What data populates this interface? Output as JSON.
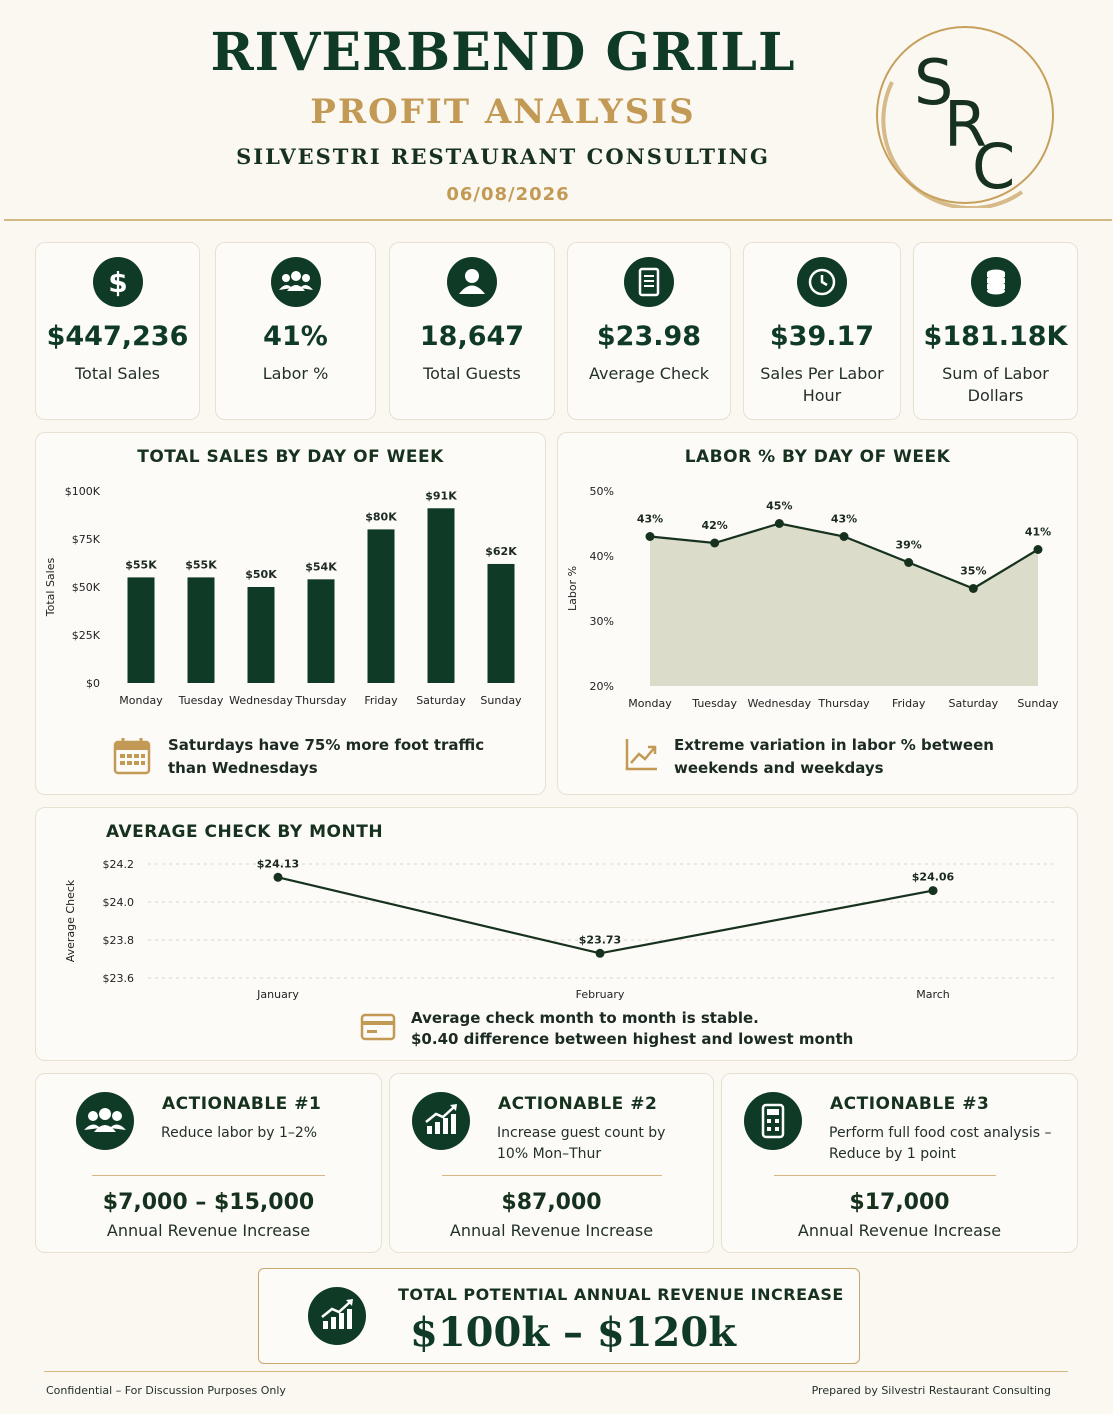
{
  "header": {
    "title": "RIVERBEND GRILL",
    "subtitle": "PROFIT ANALYSIS",
    "company": "SILVESTRI RESTAURANT CONSULTING",
    "date": "06/08/2026",
    "logo_text": "SRC"
  },
  "kpis": [
    {
      "icon": "dollar-icon",
      "value": "$447,236",
      "label": "Total Sales"
    },
    {
      "icon": "people-icon",
      "value": "41%",
      "label": "Labor %"
    },
    {
      "icon": "person-icon",
      "value": "18,647",
      "label": "Total Guests"
    },
    {
      "icon": "receipt-icon",
      "value": "$23.98",
      "label": "Average Check"
    },
    {
      "icon": "clock-icon",
      "value": "$39.17",
      "label": "Sales Per Labor Hour"
    },
    {
      "icon": "coins-icon",
      "value": "$181.18K",
      "label": "Sum of Labor Dollars"
    }
  ],
  "chart_data": [
    {
      "type": "bar",
      "title": "TOTAL SALES BY DAY OF WEEK",
      "ylabel": "Total Sales",
      "categories": [
        "Monday",
        "Tuesday",
        "Wednesday",
        "Thursday",
        "Friday",
        "Saturday",
        "Sunday"
      ],
      "values": [
        55000,
        55000,
        50000,
        54000,
        80000,
        91000,
        62000
      ],
      "data_labels": [
        "$55K",
        "$55K",
        "$50K",
        "$54K",
        "$80K",
        "$91K",
        "$62K"
      ],
      "ylim": [
        0,
        100000
      ],
      "yticks": [
        0,
        25000,
        50000,
        75000,
        100000
      ],
      "ytick_labels": [
        "$0",
        "$25K",
        "$50K",
        "$75K",
        "$100K"
      ],
      "color": "#0f3a25",
      "insight": "Saturdays have 75% more foot traffic than Wednesdays",
      "insight_icon": "calendar-icon"
    },
    {
      "type": "area",
      "title": "LABOR % BY DAY OF WEEK",
      "ylabel": "Labor %",
      "categories": [
        "Monday",
        "Tuesday",
        "Wednesday",
        "Thursday",
        "Friday",
        "Saturday",
        "Sunday"
      ],
      "values": [
        43,
        42,
        45,
        43,
        39,
        35,
        41
      ],
      "data_labels": [
        "43%",
        "42%",
        "45%",
        "43%",
        "39%",
        "35%",
        "41%"
      ],
      "ylim": [
        20,
        50
      ],
      "yticks": [
        20,
        30,
        40,
        50
      ],
      "ytick_labels": [
        "20%",
        "30%",
        "40%",
        "50%"
      ],
      "fill_color": "#dcdccb",
      "line_color": "#16321f",
      "insight": "Extreme variation in labor % between weekends and weekdays",
      "insight_icon": "trend-up-icon"
    },
    {
      "type": "line",
      "title": "AVERAGE CHECK BY MONTH",
      "ylabel": "Average Check",
      "categories": [
        "January",
        "February",
        "March"
      ],
      "values": [
        24.13,
        23.73,
        24.06
      ],
      "data_labels": [
        "$24.13",
        "$23.73",
        "$24.06"
      ],
      "ylim": [
        23.6,
        24.2
      ],
      "yticks": [
        23.6,
        23.8,
        24.0,
        24.2
      ],
      "ytick_labels": [
        "$23.6",
        "$23.8",
        "$24.0",
        "$24.2"
      ],
      "line_color": "#16321f",
      "grid": "dashed",
      "insight_lines": [
        "Average check month to month is stable.",
        "$0.40 difference between highest and lowest month"
      ],
      "insight_icon": "credit-card-icon"
    }
  ],
  "actionables": [
    {
      "title": "ACTIONABLE #1",
      "desc": "Reduce labor by 1–2%",
      "value": "$7,000 – $15,000",
      "value_label": "Annual Revenue Increase",
      "icon": "people-icon"
    },
    {
      "title": "ACTIONABLE #2",
      "desc": "Increase guest count by 10% Mon–Thur",
      "value": "$87,000",
      "value_label": "Annual Revenue Increase",
      "icon": "growth-chart-icon"
    },
    {
      "title": "ACTIONABLE #3",
      "desc": "Perform full food cost analysis – Reduce by 1 point",
      "value": "$17,000",
      "value_label": "Annual Revenue Increase",
      "icon": "calculator-icon"
    }
  ],
  "total": {
    "label": "TOTAL POTENTIAL ANNUAL REVENUE INCREASE",
    "value": "$100k – $120k",
    "icon": "growth-chart-icon"
  },
  "footer": {
    "left": "Confidential – For Discussion Purposes Only",
    "right": "Prepared by Silvestri Restaurant Consulting"
  },
  "colors": {
    "primary": "#0f3a25",
    "gold": "#c29a55",
    "background": "#fbf8f2"
  }
}
